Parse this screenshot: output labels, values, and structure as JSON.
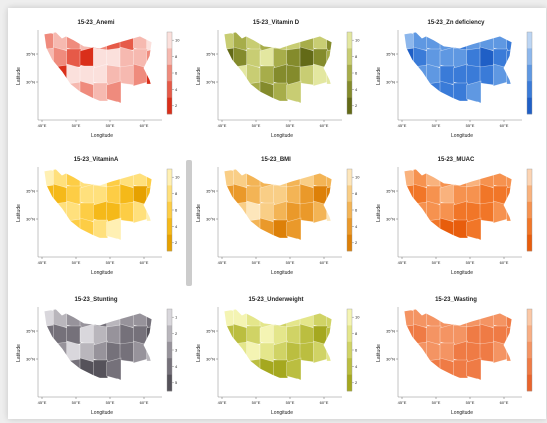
{
  "chart_data": [
    {
      "type": "heatmap",
      "title": "15-23_Anemi",
      "xlabel": "Longitude",
      "ylabel": "Latitude",
      "x_ticks": [
        "45°E",
        "50°E",
        "55°E",
        "60°E"
      ],
      "y_ticks": [
        "35°N",
        "30°N"
      ],
      "colorbar_ticks": [
        "10",
        "8",
        "6",
        "4",
        "2"
      ],
      "palette": [
        "#fbe0dc",
        "#f6b9b0",
        "#ef8b7d",
        "#e65a48",
        "#da2f1a"
      ],
      "values": [
        3,
        2,
        3,
        2,
        3,
        4,
        4,
        2,
        1,
        2,
        3,
        4,
        5,
        1,
        1,
        2,
        2,
        3,
        4,
        5,
        1,
        1,
        1,
        2,
        2,
        3,
        5,
        5,
        2,
        2,
        3,
        2,
        3
      ]
    },
    {
      "type": "heatmap",
      "title": "15-23_Vitamin D",
      "xlabel": "Longitude",
      "ylabel": "Latitude",
      "x_ticks": [
        "45°E",
        "50°E",
        "55°E",
        "60°E"
      ],
      "y_ticks": [
        "35°N",
        "30°N"
      ],
      "colorbar_ticks": [
        "10",
        "8",
        "6",
        "4",
        "2"
      ],
      "palette": [
        "#e3e7a0",
        "#c8cd73",
        "#a7ad4a",
        "#848b2c",
        "#636a17"
      ],
      "values": [
        2,
        3,
        2,
        3,
        2,
        2,
        3,
        2,
        4,
        5,
        4,
        2,
        1,
        3,
        4,
        5,
        4,
        3,
        2,
        1,
        2,
        3,
        4,
        4,
        2,
        1,
        1,
        2,
        1,
        3,
        4,
        3,
        2
      ]
    },
    {
      "type": "heatmap",
      "title": "15-23_Zn deficiency",
      "xlabel": "Longitude",
      "ylabel": "Latitude",
      "x_ticks": [
        "45°E",
        "50°E",
        "55°E",
        "60°E"
      ],
      "y_ticks": [
        "35°N",
        "30°N"
      ],
      "colorbar_ticks": [
        "",
        "",
        "",
        "",
        ""
      ],
      "palette": [
        "#bcd5f3",
        "#8db7ec",
        "#5f98e2",
        "#3a7bd8",
        "#1f5fc6"
      ],
      "values": [
        2,
        3,
        3,
        3,
        4,
        3,
        3,
        3,
        4,
        5,
        4,
        3,
        3,
        3,
        4,
        5,
        4,
        4,
        3,
        3,
        3,
        4,
        4,
        4,
        4,
        3,
        3,
        4,
        3,
        4,
        4,
        4,
        3
      ]
    },
    {
      "type": "heatmap",
      "title": "15-23_VitaminA",
      "xlabel": "Longitude",
      "ylabel": "Latitude",
      "x_ticks": [
        "45°E",
        "50°E",
        "55°E",
        "60°E"
      ],
      "y_ticks": [
        "35°N",
        "30°N"
      ],
      "colorbar_ticks": [
        "10",
        "8",
        "6",
        "4",
        "2"
      ],
      "palette": [
        "#fff0b3",
        "#ffe07c",
        "#fdcd45",
        "#f5b919",
        "#e6a100"
      ],
      "values": [
        1,
        2,
        3,
        2,
        1,
        3,
        2,
        2,
        3,
        4,
        4,
        3,
        2,
        2,
        3,
        4,
        5,
        4,
        3,
        2,
        2,
        3,
        4,
        4,
        3,
        2,
        1,
        2,
        2,
        3,
        3,
        2,
        1
      ]
    },
    {
      "type": "heatmap",
      "title": "15-23_BMI",
      "xlabel": "Longitude",
      "ylabel": "Latitude",
      "x_ticks": [
        "45°E",
        "50°E",
        "55°E",
        "60°E"
      ],
      "y_ticks": [
        "35°N",
        "30°N"
      ],
      "colorbar_ticks": [
        "10",
        "8",
        "6",
        "4",
        "2"
      ],
      "palette": [
        "#fde6bb",
        "#f9ce86",
        "#f3b455",
        "#ea992a",
        "#dd8008"
      ],
      "values": [
        2,
        2,
        3,
        3,
        2,
        3,
        2,
        3,
        3,
        4,
        4,
        3,
        2,
        2,
        3,
        4,
        5,
        5,
        3,
        2,
        1,
        2,
        3,
        4,
        4,
        3,
        1,
        1,
        2,
        3,
        4,
        5,
        4
      ]
    },
    {
      "type": "heatmap",
      "title": "15-23_MUAC",
      "xlabel": "Longitude",
      "ylabel": "Latitude",
      "x_ticks": [
        "45°E",
        "50°E",
        "55°E",
        "60°E"
      ],
      "y_ticks": [
        "35°N",
        "30°N"
      ],
      "colorbar_ticks": [
        "",
        "",
        "",
        "",
        ""
      ],
      "palette": [
        "#fcd4b3",
        "#f9b27d",
        "#f6924f",
        "#f17628",
        "#e85d0c"
      ],
      "values": [
        2,
        3,
        2,
        3,
        3,
        2,
        3,
        3,
        3,
        4,
        4,
        3,
        2,
        3,
        3,
        4,
        4,
        4,
        3,
        3,
        3,
        3,
        4,
        4,
        4,
        3,
        3,
        3,
        3,
        4,
        5,
        5,
        4
      ]
    },
    {
      "type": "heatmap",
      "title": "15-23_Stunting",
      "xlabel": "Longitude",
      "ylabel": "Latitude",
      "x_ticks": [
        "45°E",
        "50°E",
        "55°E",
        "60°E"
      ],
      "y_ticks": [
        "35°N",
        "30°N"
      ],
      "colorbar_ticks": [
        "1",
        "2",
        "3",
        "4",
        "5"
      ],
      "palette": [
        "#d9d7dc",
        "#b9b6bc",
        "#97939b",
        "#75717a",
        "#55525a"
      ],
      "values": [
        1,
        2,
        3,
        3,
        4,
        2,
        3,
        3,
        4,
        4,
        4,
        4,
        1,
        2,
        3,
        4,
        4,
        5,
        5,
        3,
        1,
        2,
        3,
        4,
        4,
        3,
        2,
        2,
        3,
        4,
        5,
        5,
        4
      ]
    },
    {
      "type": "heatmap",
      "title": "15-23_Underweight",
      "xlabel": "Longitude",
      "ylabel": "Latitude",
      "x_ticks": [
        "45°E",
        "50°E",
        "55°E",
        "60°E"
      ],
      "y_ticks": [
        "35°N",
        "30°N"
      ],
      "colorbar_ticks": [
        "10",
        "8",
        "6",
        "4",
        "2"
      ],
      "palette": [
        "#f4f4b3",
        "#e4e68b",
        "#d0d365",
        "#bbbe40",
        "#a5a81f"
      ],
      "values": [
        1,
        1,
        2,
        2,
        3,
        2,
        2,
        3,
        3,
        4,
        4,
        3,
        1,
        2,
        3,
        4,
        5,
        4,
        3,
        2,
        1,
        2,
        3,
        4,
        4,
        3,
        2,
        2,
        3,
        4,
        5,
        5,
        4
      ]
    },
    {
      "type": "heatmap",
      "title": "15-23_Wasting",
      "xlabel": "Longitude",
      "ylabel": "Latitude",
      "x_ticks": [
        "45°E",
        "50°E",
        "55°E",
        "60°E"
      ],
      "y_ticks": [
        "35°N",
        "30°N"
      ],
      "colorbar_ticks": [
        "",
        "",
        "",
        "",
        ""
      ],
      "palette": [
        "#fbc8a6",
        "#f8ae84",
        "#f49463",
        "#ef7b45",
        "#e9642c"
      ],
      "values": [
        3,
        3,
        3,
        3,
        3,
        3,
        3,
        3,
        4,
        4,
        4,
        3,
        3,
        3,
        4,
        4,
        4,
        4,
        3,
        3,
        3,
        3,
        4,
        4,
        4,
        3,
        3,
        3,
        3,
        4,
        4,
        4,
        4
      ]
    }
  ]
}
